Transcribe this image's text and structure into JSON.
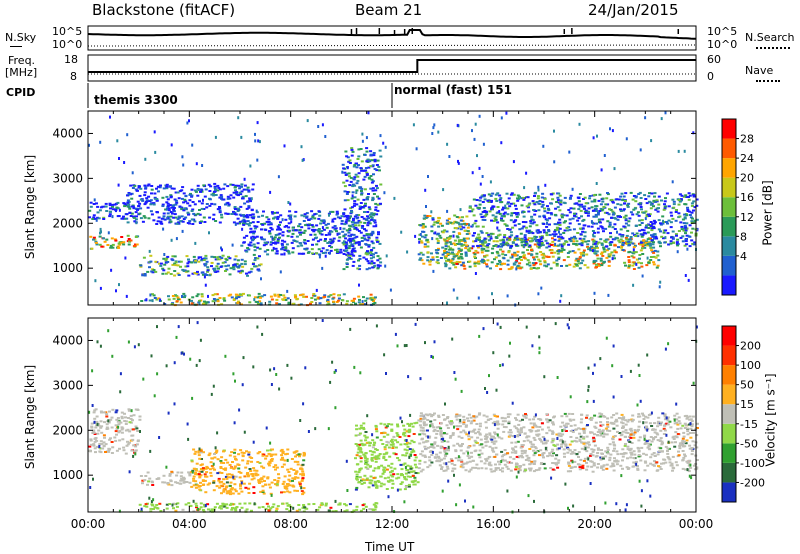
{
  "header": {
    "station": "Blackstone (fitACF)",
    "beam": "Beam 21",
    "date": "24/Jan/2015"
  },
  "summary_panel": {
    "left_labels": {
      "nsky": "N.Sky",
      "freq_line1": "Freq.",
      "freq_line2": "[MHz]",
      "cpid": "CPID"
    },
    "right_labels": {
      "nsearch": "N.Search",
      "nave": "Nave"
    },
    "left_ticks": {
      "noise_top": "10^5",
      "noise_bottom": "10^0",
      "freq_top": "18",
      "freq_bottom": "8"
    },
    "right_ticks": {
      "noise_top": "10^5",
      "noise_bottom": "10^0",
      "nave_top": "60",
      "nave_bottom": "0"
    },
    "cpid_segments": [
      {
        "label": "themis 3300",
        "start_hour": 0.0
      },
      {
        "label": "normal (fast) 151",
        "start_hour": 12.0
      }
    ],
    "frequency_step_hour": 13.0
  },
  "chart_data": [
    {
      "type": "heatmap",
      "panel": "power",
      "ylabel": "Slant Range [km]",
      "xlabel": "",
      "ylim": [
        180,
        4500
      ],
      "yticks": [
        "1000",
        "2000",
        "3000",
        "4000"
      ],
      "colorbar": {
        "label": "Power [dB]",
        "ticks": [
          "28",
          "24",
          "20",
          "16",
          "12",
          "8",
          "4"
        ],
        "colors": [
          "#1a1aff",
          "#2060d0",
          "#2a8aa0",
          "#2a9a58",
          "#6cbf3a",
          "#c8c81a",
          "#ffa500",
          "#ff5a00",
          "#ff0000"
        ]
      },
      "bands": [
        {
          "t": [
            0.0,
            2.0
          ],
          "r": [
            1450,
            1750
          ],
          "level": 0.6
        },
        {
          "t": [
            0.0,
            2.0
          ],
          "r": [
            2100,
            2500
          ],
          "level": 0.1
        },
        {
          "t": [
            1.5,
            6.5
          ],
          "r": [
            2000,
            2900
          ],
          "level": 0.05
        },
        {
          "t": [
            2.0,
            6.8
          ],
          "r": [
            850,
            1300
          ],
          "level": 0.3
        },
        {
          "t": [
            6.0,
            10.5
          ],
          "r": [
            1300,
            2300
          ],
          "level": 0.1
        },
        {
          "t": [
            10.0,
            11.5
          ],
          "r": [
            1000,
            3700
          ],
          "level": 0.15
        },
        {
          "t": [
            13.0,
            15.0
          ],
          "r": [
            1100,
            2200
          ],
          "level": 0.45
        },
        {
          "t": [
            14.0,
            22.5
          ],
          "r": [
            1000,
            1700
          ],
          "level": 0.55
        },
        {
          "t": [
            15.0,
            24.0
          ],
          "r": [
            1500,
            2700
          ],
          "level": 0.2
        },
        {
          "t": [
            2.0,
            11.5
          ],
          "r": [
            200,
            450
          ],
          "level": 0.5
        }
      ]
    },
    {
      "type": "heatmap",
      "panel": "velocity",
      "ylabel": "Slant Range [km]",
      "xlabel": "Time UT",
      "ylim": [
        180,
        4500
      ],
      "yticks": [
        "1000",
        "2000",
        "3000",
        "4000"
      ],
      "xticks": [
        "00:00",
        "04:00",
        "08:00",
        "12:00",
        "16:00",
        "20:00",
        "00:00"
      ],
      "xlim_hours": [
        0,
        24
      ],
      "colorbar": {
        "label": "Velocity [m s⁻¹]",
        "ticks": [
          "200",
          "100",
          "50",
          "15",
          "-15",
          "-50",
          "-100",
          "-200"
        ],
        "colors": [
          "#1a30c0",
          "#2a6a3a",
          "#30a030",
          "#90d848",
          "#bfbfb6",
          "#ffb020",
          "#ff8000",
          "#ff3000",
          "#ff0000"
        ]
      },
      "bands": [
        {
          "t": [
            0.0,
            2.0
          ],
          "r": [
            1500,
            2500
          ],
          "color": "#bfbfb6"
        },
        {
          "t": [
            2.0,
            4.0
          ],
          "r": [
            800,
            1100
          ],
          "color": "#bfbfb6"
        },
        {
          "t": [
            4.0,
            8.5
          ],
          "r": [
            600,
            1600
          ],
          "color": "#ffb020"
        },
        {
          "t": [
            10.5,
            13.0
          ],
          "r": [
            700,
            2200
          ],
          "color": "#90d848"
        },
        {
          "t": [
            13.0,
            24.0
          ],
          "r": [
            1100,
            2400
          ],
          "color": "#bfbfb6"
        },
        {
          "t": [
            2.0,
            11.5
          ],
          "r": [
            200,
            400
          ],
          "color": "#90d848"
        }
      ]
    }
  ]
}
